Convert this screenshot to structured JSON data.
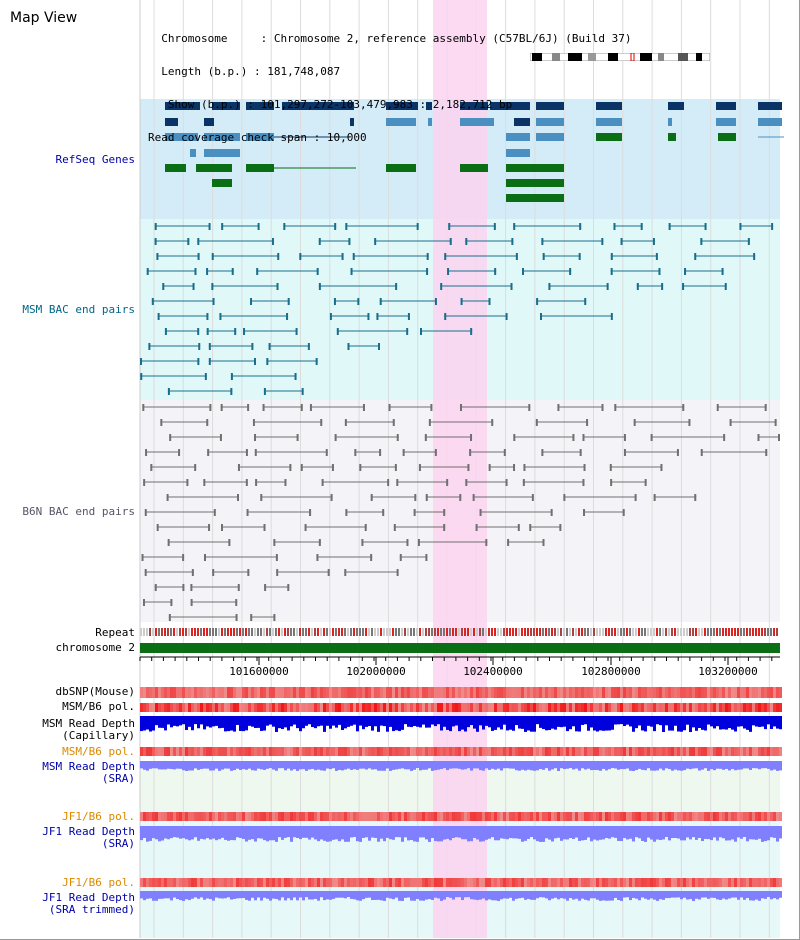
{
  "map_title": "Map View",
  "info": {
    "chromosome_key": "Chromosome",
    "chromosome_val": "Chromosome 2, reference assembly (C57BL/6J) (Build 37)",
    "length_key": "Length (b.p.)",
    "length_val": "181,748,087",
    "show_key": "Show (b.p.)",
    "show_val": "101,297,272-103,479,983 : 2,182,712 bp",
    "coverage_key": "Read coverage check span",
    "coverage_val": "10,000"
  },
  "axis": {
    "ticks": [
      "101600000",
      "102000000",
      "102400000",
      "102800000",
      "103200000"
    ]
  },
  "labels": {
    "refseq": "RefSeq Genes",
    "msm_bac": "MSM BAC end pairs",
    "b6n_bac": "B6N BAC end pairs",
    "repeat": "Repeat",
    "chromosome": "chromosome 2",
    "dbsnp": "dbSNP(Mouse)",
    "msm_b6_pol_1": "MSM/B6 pol.",
    "msm_read_depth_cap_1": "MSM Read Depth",
    "msm_read_depth_cap_2": "(Capillary)",
    "msm_b6_pol_2": "MSM/B6 pol.",
    "msm_read_depth_sra_1": "MSM Read Depth",
    "msm_read_depth_sra_2": "(SRA)",
    "jf1_b6_pol_1": "JF1/B6 pol.",
    "jf1_read_depth_sra_1": "JF1 Read Depth",
    "jf1_read_depth_sra_2": "(SRA)",
    "jf1_b6_pol_2": "JF1/B6 pol.",
    "jf1_read_depth_trim_1": "JF1 Read Depth",
    "jf1_read_depth_trim_2": "(SRA trimmed)"
  },
  "colors": {
    "refseq_bg": "#d4ecf8",
    "msm_bg": "#e0f8f8",
    "b6n_bg": "#f4f4f8",
    "highlight": "#fad4f0",
    "navy": "#0a3366",
    "steel": "#4b8fc0",
    "green": "#0a6e14",
    "teal": "#1a6e8c",
    "gray": "#707070",
    "chrom_bar": "#0a6e14",
    "label_blue": "#0000aa",
    "label_teal": "#006688",
    "label_orange": "#dd8800",
    "depth_dark": "#0000dd",
    "depth_light": "#8080ff"
  }
}
